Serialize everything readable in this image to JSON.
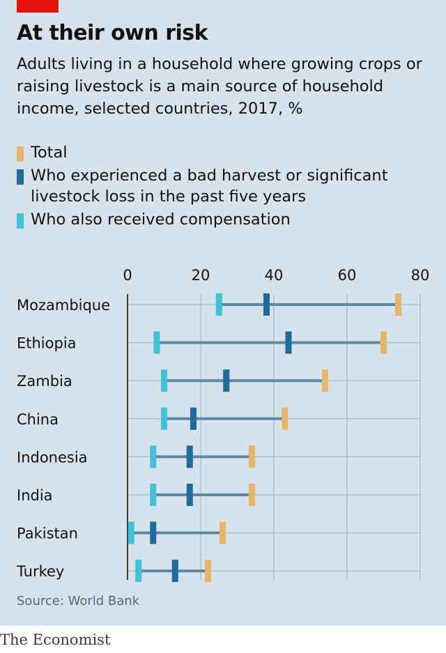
{
  "title": "At their own risk",
  "subtitle": "Adults living in a household where growing crops or raising livestock is a main source of household income, selected countries, 2017, %",
  "legend": [
    {
      "label": "Total",
      "color": "#e6b66b"
    },
    {
      "label": "Who experienced a bad harvest or significant livestock loss in the past five years",
      "color": "#1f6b9c"
    },
    {
      "label": "Who also received compensation",
      "color": "#3ec3d8"
    }
  ],
  "source": "Source: World Bank",
  "brand": "The Economist",
  "chart_data": {
    "type": "dot-range",
    "xlim": [
      0,
      80
    ],
    "xticks": [
      "0",
      "20",
      "40",
      "60",
      "80"
    ],
    "xtick_values": [
      0,
      20,
      40,
      60,
      80
    ],
    "categories": [
      "Mozambique",
      "Ethiopia",
      "Zambia",
      "China",
      "Indonesia",
      "India",
      "Pakistan",
      "Turkey"
    ],
    "series": [
      {
        "name": "Total",
        "color": "#e6b66b",
        "values": [
          74,
          70,
          54,
          43,
          34,
          34,
          26,
          22
        ]
      },
      {
        "name": "Who experienced a bad harvest or significant livestock loss in the past five years",
        "color": "#1f6b9c",
        "values": [
          38,
          44,
          27,
          18,
          17,
          17,
          7,
          13
        ]
      },
      {
        "name": "Who also received compensation",
        "color": "#3ec3d8",
        "values": [
          25,
          8,
          10,
          10,
          7,
          7,
          1,
          3
        ]
      }
    ],
    "grid": true
  }
}
